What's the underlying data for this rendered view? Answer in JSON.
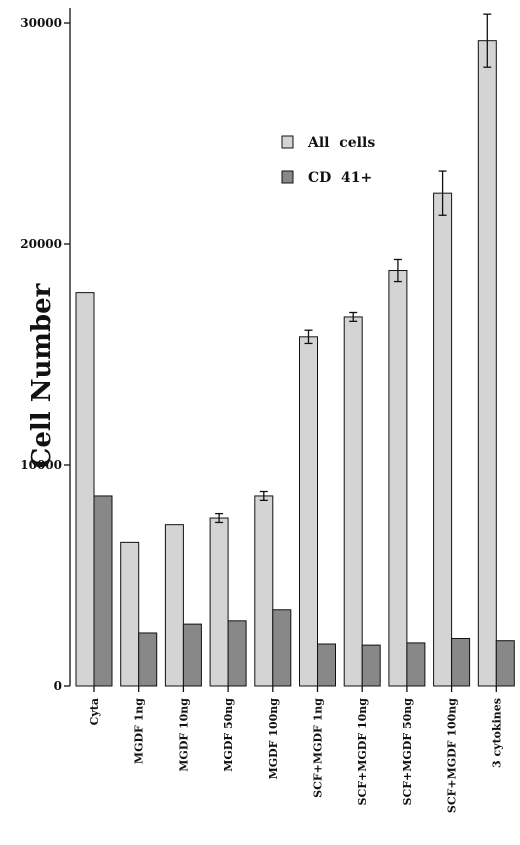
{
  "chart_data": {
    "type": "bar",
    "title": "",
    "xlabel": "",
    "ylabel": "Cell Number",
    "ylim": [
      0,
      30000
    ],
    "yticks": [
      0,
      10000,
      20000,
      30000
    ],
    "grid": false,
    "legend_position": "upper-middle",
    "categories": [
      "Cyta",
      "MGDF  1ng",
      "MGDF  10ng",
      "MGDF  50ng",
      "MGDF  100ng",
      "SCF+MGDF  1ng",
      "SCF+MGDF  10ng",
      "SCF+MGDF  50ng",
      "SCF+MGDF  100ng",
      "3  cytokines"
    ],
    "series": [
      {
        "name": "All  cells",
        "color": "#d4d4d4",
        "values": [
          17800,
          6500,
          7300,
          7600,
          8600,
          15800,
          16700,
          18800,
          22300,
          29200
        ],
        "errors": [
          0,
          0,
          0,
          200,
          200,
          300,
          200,
          500,
          1000,
          1200
        ]
      },
      {
        "name": "CD  41+",
        "color": "#888888",
        "values": [
          8600,
          2400,
          2800,
          2950,
          3450,
          1900,
          1850,
          1950,
          2150,
          2050
        ],
        "errors": [
          0,
          0,
          0,
          0,
          0,
          0,
          0,
          0,
          0,
          0
        ]
      }
    ]
  }
}
